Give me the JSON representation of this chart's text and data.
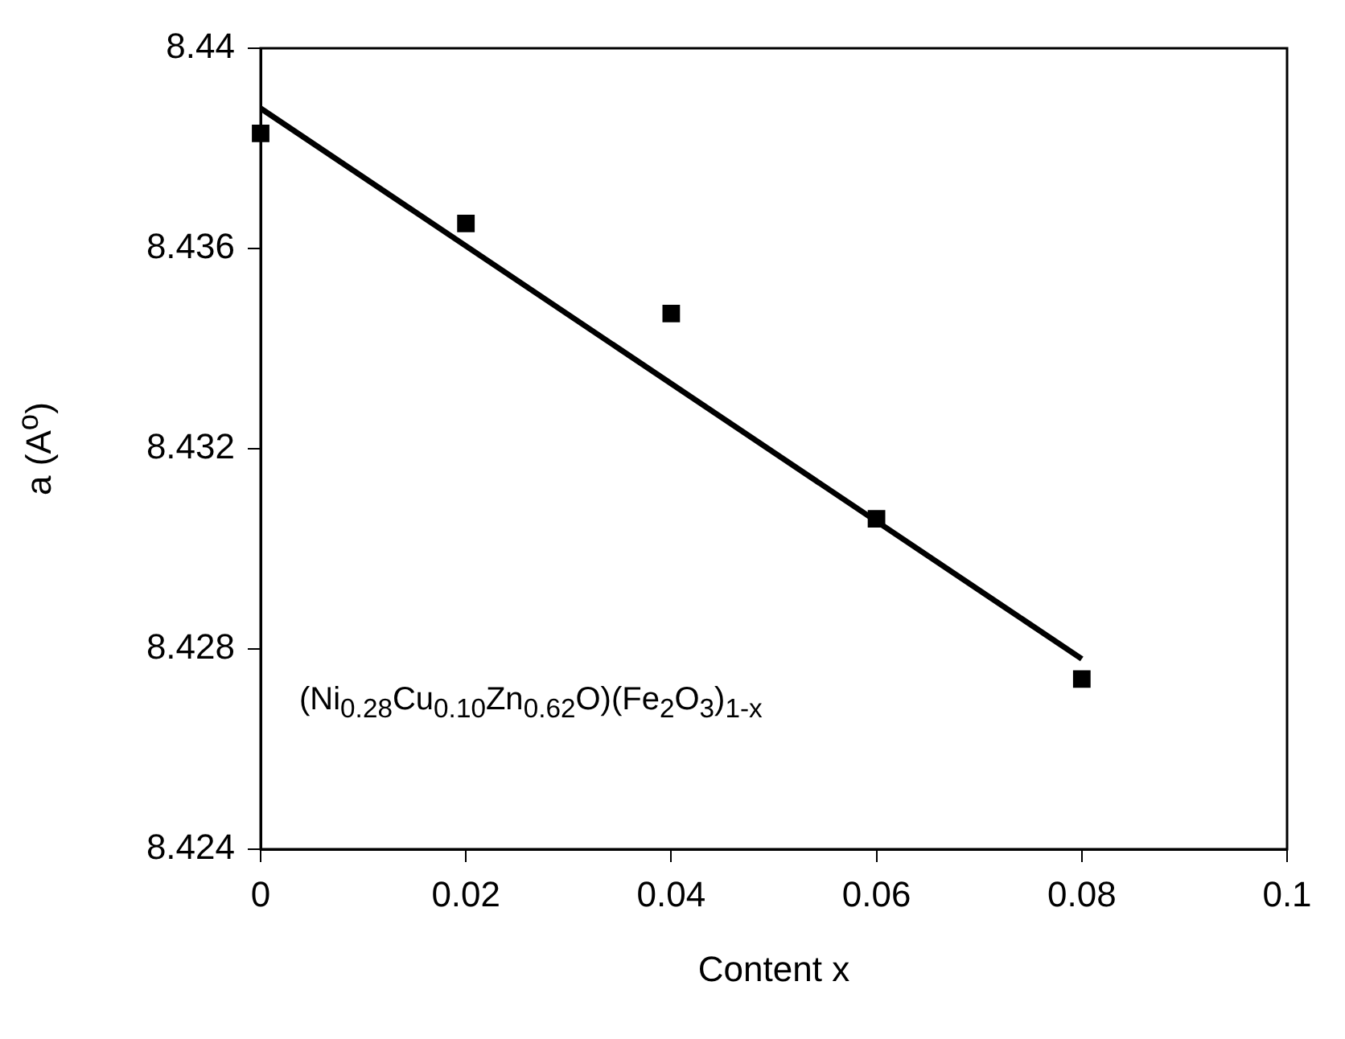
{
  "chart_data": {
    "type": "scatter",
    "xlabel": "Content x",
    "ylabel": "a (A$^{o}$)",
    "x": [
      0,
      0.02,
      0.04,
      0.06,
      0.08
    ],
    "series": [
      {
        "color": "#000000",
        "values": [
          8.4383,
          8.4365,
          8.4347,
          8.4306,
          8.4274
        ],
        "marker": "square"
      },
      {
        "type": "line",
        "color": "#000000",
        "x": [
          0,
          0.08
        ],
        "values": [
          8.4388,
          8.4278
        ],
        "marker": "none",
        "line_style": "solid"
      }
    ],
    "xlim": [
      0,
      0.1
    ],
    "xticks": [
      0,
      0.02,
      0.04,
      0.06,
      0.08,
      0.1
    ],
    "ylim": [
      8.424,
      8.44
    ],
    "yticks": [
      8.424,
      8.428,
      8.432,
      8.436,
      8.44
    ],
    "grid": false,
    "legend": false,
    "annotations": [
      "(Ni$_{0.28}$Cu$_{0.10}$Zn$_{0.62}$O)(Fe$_{2}$O$_{3}$)$_{1-x}$"
    ]
  }
}
